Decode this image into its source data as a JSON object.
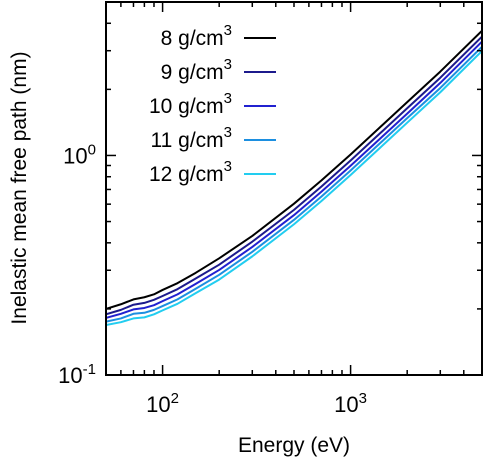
{
  "chart_data": {
    "type": "line",
    "xlabel": "Energy (eV)",
    "ylabel": "Inelastic mean free path (nm)",
    "xscale": "log",
    "yscale": "log",
    "xlim": [
      50,
      5000
    ],
    "ylim": [
      0.1,
      5
    ],
    "grid": false,
    "legend_position": "top-left",
    "x_ticks": [
      {
        "value": 100,
        "base": "10",
        "exp": "2"
      },
      {
        "value": 1000,
        "base": "10",
        "exp": "3"
      }
    ],
    "y_ticks": [
      {
        "value": 0.1,
        "base": "10",
        "exp": "-1"
      },
      {
        "value": 1,
        "base": "10",
        "exp": "0"
      }
    ],
    "x": [
      50,
      60,
      70,
      80,
      90,
      100,
      120,
      150,
      200,
      300,
      500,
      700,
      1000,
      2000,
      3000,
      5000
    ],
    "series": [
      {
        "name": "8 g/cm",
        "name_sup": "3",
        "color": "#000000",
        "values": [
          0.2,
          0.21,
          0.221,
          0.226,
          0.233,
          0.244,
          0.262,
          0.292,
          0.34,
          0.43,
          0.603,
          0.77,
          1.01,
          1.75,
          2.41,
          3.7
        ]
      },
      {
        "name": "9 g/cm",
        "name_sup": "3",
        "color": "#1c1a8c",
        "values": [
          0.189,
          0.198,
          0.209,
          0.213,
          0.22,
          0.229,
          0.246,
          0.275,
          0.318,
          0.405,
          0.565,
          0.722,
          0.948,
          1.64,
          2.26,
          3.48
        ]
      },
      {
        "name": "10 g/cm",
        "name_sup": "3",
        "color": "#2121d0",
        "values": [
          0.182,
          0.19,
          0.199,
          0.202,
          0.208,
          0.217,
          0.233,
          0.26,
          0.301,
          0.383,
          0.535,
          0.684,
          0.898,
          1.55,
          2.14,
          3.3
        ]
      },
      {
        "name": "11 g/cm",
        "name_sup": "3",
        "color": "#1c8fe0",
        "values": [
          0.175,
          0.181,
          0.19,
          0.192,
          0.198,
          0.206,
          0.221,
          0.247,
          0.286,
          0.364,
          0.509,
          0.65,
          0.854,
          1.48,
          2.03,
          3.13
        ]
      },
      {
        "name": "12 g/cm",
        "name_sup": "3",
        "color": "#22cdf0",
        "values": [
          0.169,
          0.174,
          0.181,
          0.183,
          0.189,
          0.197,
          0.211,
          0.236,
          0.272,
          0.347,
          0.486,
          0.62,
          0.815,
          1.41,
          1.94,
          2.99
        ]
      }
    ]
  }
}
